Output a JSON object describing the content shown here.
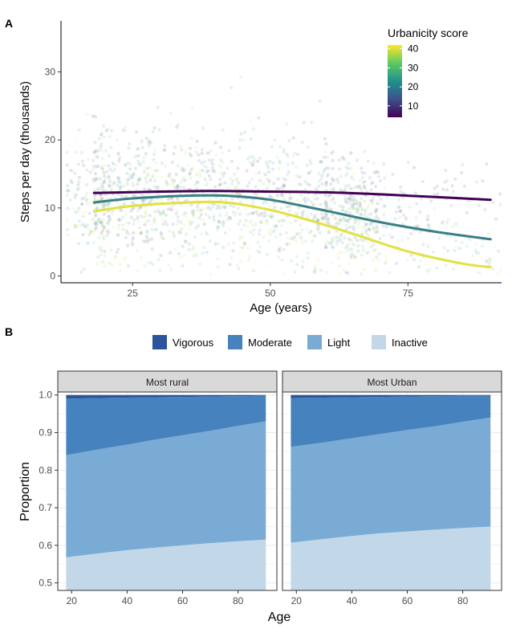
{
  "chart_data": [
    {
      "panel": "A",
      "type": "scatter",
      "xlabel": "Age (years)",
      "ylabel": "Steps per day (thousands)",
      "xlim": [
        12,
        92
      ],
      "ylim": [
        -1,
        37.5
      ],
      "xticks": [
        25,
        50,
        75
      ],
      "yticks": [
        0,
        10,
        20,
        30
      ],
      "grid": false,
      "legend": {
        "title": "Urbanicity score",
        "position": "top-right",
        "ticks": [
          10,
          20,
          30,
          40
        ],
        "range": [
          4,
          42
        ],
        "colors": [
          "#440154",
          "#3b528b",
          "#21918c",
          "#5ec962",
          "#fde725"
        ]
      },
      "scatter_alpha": 0.12,
      "series": [
        {
          "urbanicity": 5,
          "color": "#440154",
          "x": [
            18,
            30,
            40,
            50,
            60,
            70,
            80,
            90
          ],
          "y": [
            12.2,
            12.4,
            12.5,
            12.4,
            12.3,
            12.0,
            11.6,
            11.2
          ]
        },
        {
          "urbanicity": 23,
          "color": "#3a7f87",
          "x": [
            18,
            25,
            35,
            42,
            50,
            60,
            70,
            80,
            90
          ],
          "y": [
            10.8,
            11.4,
            11.8,
            11.8,
            11.2,
            9.6,
            7.9,
            6.5,
            5.4
          ]
        },
        {
          "urbanicity": 40,
          "color": "#e3e143",
          "x": [
            18,
            25,
            35,
            42,
            50,
            57,
            65,
            75,
            85,
            90
          ],
          "y": [
            9.5,
            10.3,
            10.8,
            10.8,
            9.7,
            8.2,
            6.2,
            3.6,
            1.8,
            1.3
          ]
        }
      ]
    },
    {
      "panel": "B",
      "type": "area",
      "stacked": true,
      "xlabel": "Age",
      "ylabel": "Proportion",
      "xlim": [
        15,
        94
      ],
      "ylim": [
        0.48,
        1.008
      ],
      "xticks": [
        20,
        40,
        60,
        80
      ],
      "yticks": [
        0.5,
        0.6,
        0.7,
        0.8,
        0.9,
        1.0
      ],
      "grid": true,
      "legend": {
        "position": "top",
        "entries": [
          "Vigorous",
          "Moderate",
          "Light",
          "Inactive"
        ]
      },
      "colors": {
        "Vigorous": "#2a559c",
        "Moderate": "#4682bd",
        "Light": "#79abd4",
        "Inactive": "#c2d8e8"
      },
      "facets": [
        {
          "label": "Most rural",
          "x": [
            18,
            30,
            40,
            50,
            60,
            70,
            80,
            90
          ],
          "boundaries": {
            "Inactive": [
              0.568,
              0.579,
              0.587,
              0.594,
              0.6,
              0.606,
              0.611,
              0.615
            ],
            "Light": [
              0.84,
              0.856,
              0.868,
              0.881,
              0.893,
              0.905,
              0.918,
              0.93
            ],
            "Moderate": [
              0.99,
              0.992,
              0.993,
              0.994,
              0.995,
              0.996,
              0.997,
              0.998
            ],
            "Vigorous": [
              1.0,
              1.0,
              1.0,
              1.0,
              1.0,
              1.0,
              1.0,
              1.0
            ]
          }
        },
        {
          "label": "Most Urban",
          "x": [
            18,
            30,
            40,
            50,
            60,
            70,
            80,
            90
          ],
          "boundaries": {
            "Inactive": [
              0.607,
              0.617,
              0.625,
              0.632,
              0.637,
              0.642,
              0.646,
              0.65
            ],
            "Light": [
              0.862,
              0.874,
              0.885,
              0.896,
              0.907,
              0.917,
              0.929,
              0.94
            ],
            "Moderate": [
              0.992,
              0.993,
              0.994,
              0.995,
              0.996,
              0.997,
              0.998,
              0.998
            ],
            "Vigorous": [
              1.0,
              1.0,
              1.0,
              1.0,
              1.0,
              1.0,
              1.0,
              1.0
            ]
          }
        }
      ]
    }
  ],
  "panel_labels": [
    "A",
    "B"
  ]
}
